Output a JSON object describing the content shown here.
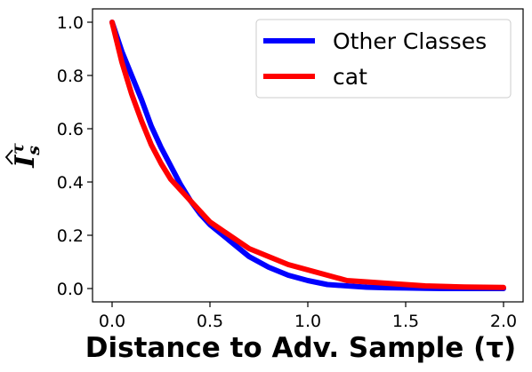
{
  "chart_data": {
    "type": "line",
    "title": "",
    "xlabel": "Distance to Adv. Sample (τ)",
    "ylabel_base": "I",
    "ylabel_sup": "τ",
    "ylabel_sub": "s",
    "xlim": [
      -0.1,
      2.1
    ],
    "ylim": [
      -0.05,
      1.05
    ],
    "xticks": [
      "0.0",
      "0.5",
      "1.0",
      "1.5",
      "2.0"
    ],
    "yticks": [
      "0.0",
      "0.2",
      "0.4",
      "0.6",
      "0.8",
      "1.0"
    ],
    "grid": false,
    "legend_position": "top-right",
    "series": [
      {
        "name": "Other Classes",
        "color": "#0000ff",
        "x": [
          0.0,
          0.05,
          0.1,
          0.15,
          0.2,
          0.25,
          0.3,
          0.35,
          0.4,
          0.45,
          0.5,
          0.6,
          0.7,
          0.8,
          0.9,
          1.0,
          1.1,
          1.2,
          1.3,
          1.4,
          1.5,
          1.6,
          1.7,
          1.8,
          1.9,
          2.0
        ],
        "y": [
          1.0,
          0.89,
          0.8,
          0.71,
          0.61,
          0.53,
          0.46,
          0.39,
          0.33,
          0.28,
          0.24,
          0.18,
          0.12,
          0.08,
          0.05,
          0.03,
          0.015,
          0.01,
          0.005,
          0.003,
          0.002,
          0.001,
          0.0,
          0.0,
          0.0,
          0.0
        ]
      },
      {
        "name": "cat",
        "color": "#ff0000",
        "x": [
          0.0,
          0.05,
          0.1,
          0.15,
          0.2,
          0.25,
          0.3,
          0.35,
          0.4,
          0.45,
          0.5,
          0.6,
          0.7,
          0.8,
          0.9,
          1.0,
          1.1,
          1.2,
          1.3,
          1.4,
          1.5,
          1.6,
          1.7,
          1.8,
          1.9,
          2.0
        ],
        "y": [
          1.0,
          0.85,
          0.73,
          0.63,
          0.54,
          0.47,
          0.41,
          0.37,
          0.33,
          0.29,
          0.25,
          0.2,
          0.15,
          0.12,
          0.09,
          0.07,
          0.05,
          0.03,
          0.025,
          0.02,
          0.015,
          0.01,
          0.008,
          0.006,
          0.005,
          0.004
        ]
      }
    ]
  }
}
